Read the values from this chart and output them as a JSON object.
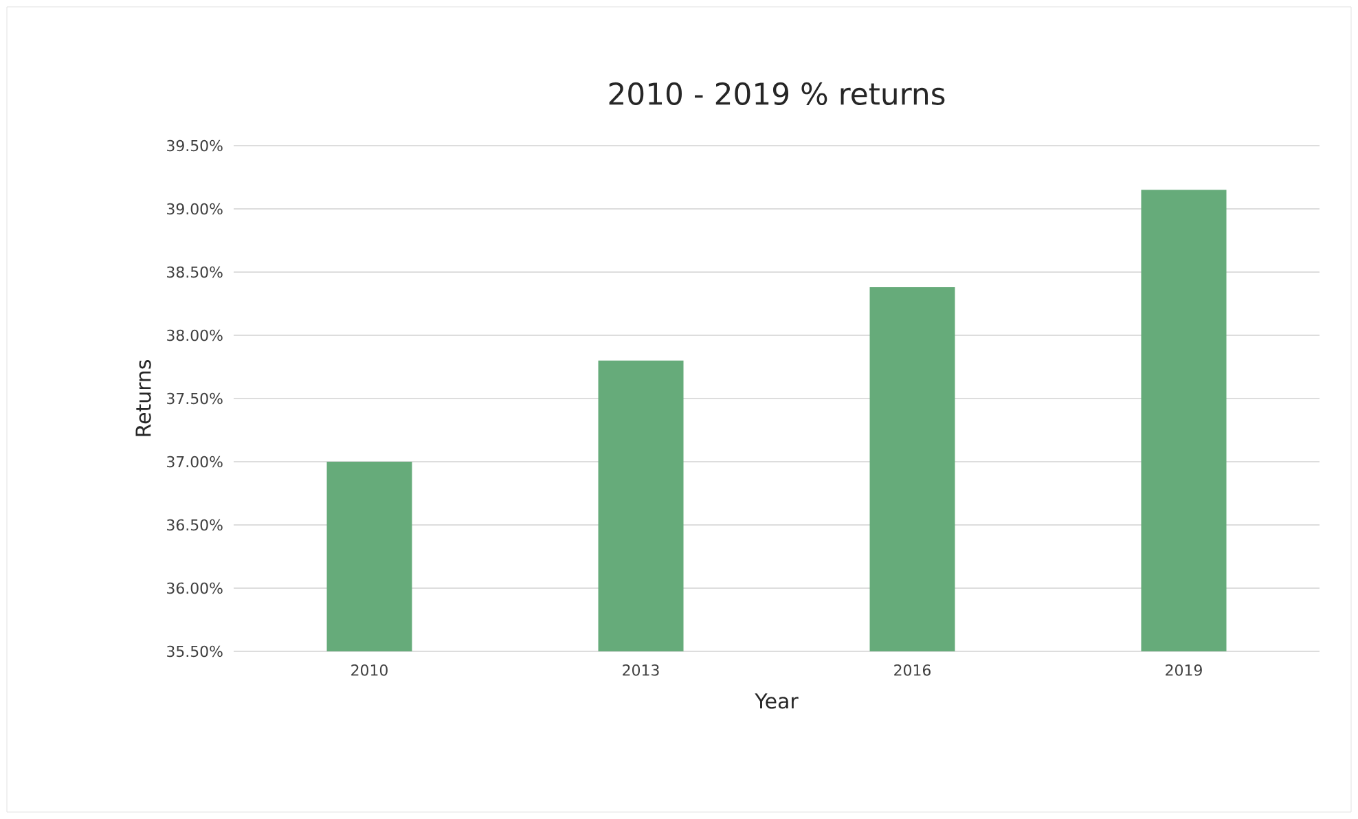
{
  "chart_data": {
    "type": "bar",
    "title": "2010 - 2019 % returns",
    "xlabel": "Year",
    "ylabel": "Returns",
    "categories": [
      "2010",
      "2013",
      "2016",
      "2019"
    ],
    "values": [
      37.0,
      37.8,
      38.38,
      39.15
    ],
    "color": "#66ab7a",
    "ylim": [
      35.5,
      39.5
    ],
    "yticks": [
      {
        "value": 35.5,
        "label": "35.50%"
      },
      {
        "value": 36.0,
        "label": "36.00%"
      },
      {
        "value": 36.5,
        "label": "36.50%"
      },
      {
        "value": 37.0,
        "label": "37.00%"
      },
      {
        "value": 37.5,
        "label": "37.50%"
      },
      {
        "value": 38.0,
        "label": "38.00%"
      },
      {
        "value": 38.5,
        "label": "38.50%"
      },
      {
        "value": 39.0,
        "label": "39.00%"
      },
      {
        "value": 39.5,
        "label": "39.50%"
      }
    ],
    "grid": "y"
  }
}
